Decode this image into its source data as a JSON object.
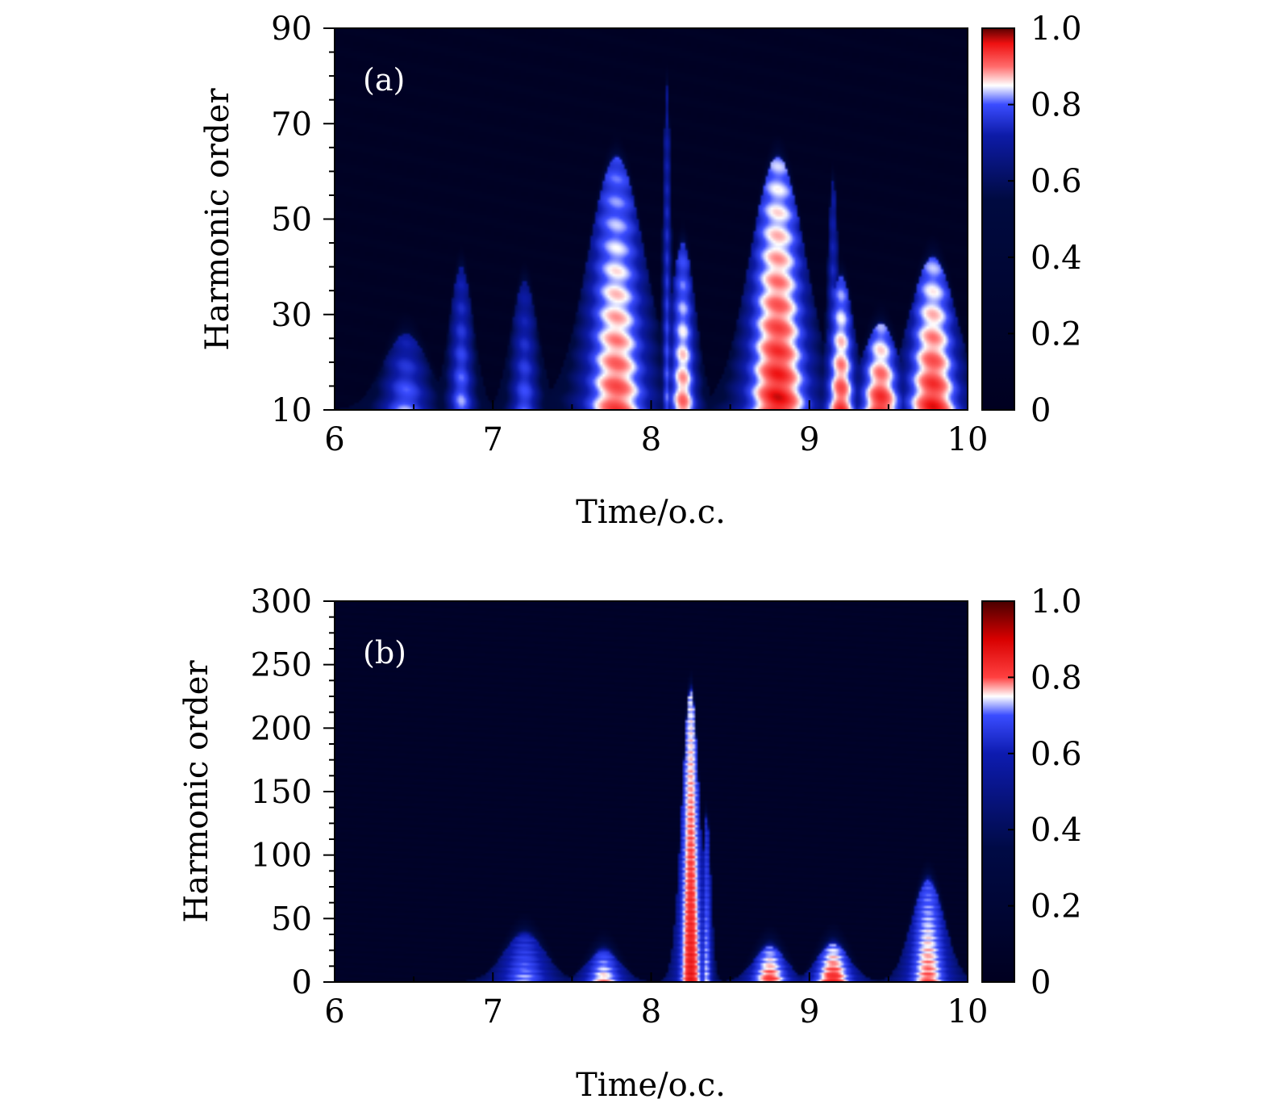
{
  "chart_data": [
    {
      "type": "heatmap",
      "panel_label": "(a)",
      "xlabel": "Time/o.c.",
      "ylabel": "Harmonic order",
      "xlim": [
        6,
        10
      ],
      "ylim": [
        10,
        90
      ],
      "x_ticks": [
        6,
        7,
        8,
        9,
        10
      ],
      "x_tick_labels": [
        "6",
        "7",
        "8",
        "9",
        "10"
      ],
      "y_ticks": [
        10,
        30,
        50,
        70,
        90
      ],
      "y_tick_labels": [
        "10",
        "30",
        "50",
        "70",
        "90"
      ],
      "colorbar": {
        "range": [
          0,
          1
        ],
        "ticks": [
          0,
          0.2,
          0.4,
          0.6,
          0.8,
          1.0
        ],
        "tick_labels": [
          "0",
          "0.2",
          "0.4",
          "0.6",
          "0.8",
          "1.0"
        ],
        "stops": [
          {
            "v": 0.0,
            "c": "#000020"
          },
          {
            "v": 0.55,
            "c": "#000a40"
          },
          {
            "v": 0.72,
            "c": "#0d1ba8"
          },
          {
            "v": 0.8,
            "c": "#3a4cff"
          },
          {
            "v": 0.85,
            "c": "#ffffff"
          },
          {
            "v": 0.9,
            "c": "#ff6b6b"
          },
          {
            "v": 0.96,
            "c": "#ef1010"
          },
          {
            "v": 1.0,
            "c": "#5a0000"
          }
        ]
      },
      "features": [
        {
          "t": 6.45,
          "peak": 26,
          "width": 0.3,
          "level": 0.82
        },
        {
          "t": 6.8,
          "peak": 40,
          "width": 0.16,
          "level": 0.82
        },
        {
          "t": 7.2,
          "peak": 37,
          "width": 0.18,
          "level": 0.8
        },
        {
          "t": 7.78,
          "peak": 63,
          "width": 0.38,
          "level": 0.92
        },
        {
          "t": 8.1,
          "peak": 78,
          "width": 0.06,
          "level": 0.8
        },
        {
          "t": 8.2,
          "peak": 45,
          "width": 0.17,
          "level": 0.9
        },
        {
          "t": 8.8,
          "peak": 63,
          "width": 0.37,
          "level": 0.96
        },
        {
          "t": 9.2,
          "peak": 38,
          "width": 0.18,
          "level": 0.93
        },
        {
          "t": 9.15,
          "peak": 58,
          "width": 0.08,
          "level": 0.8
        },
        {
          "t": 9.78,
          "peak": 42,
          "width": 0.32,
          "level": 0.95
        },
        {
          "t": 9.45,
          "peak": 28,
          "width": 0.25,
          "level": 0.95
        }
      ]
    },
    {
      "type": "heatmap",
      "panel_label": "(b)",
      "xlabel": "Time/o.c.",
      "ylabel": "Harmonic order",
      "xlim": [
        6,
        10
      ],
      "ylim": [
        0,
        300
      ],
      "x_ticks": [
        6,
        7,
        8,
        9,
        10
      ],
      "x_tick_labels": [
        "6",
        "7",
        "8",
        "9",
        "10"
      ],
      "y_ticks": [
        0,
        50,
        100,
        150,
        200,
        250,
        300
      ],
      "y_tick_labels": [
        "0",
        "50",
        "100",
        "150",
        "200",
        "250",
        "300"
      ],
      "colorbar": {
        "range": [
          0,
          1
        ],
        "ticks": [
          0,
          0.2,
          0.4,
          0.6,
          0.8,
          1.0
        ],
        "tick_labels": [
          "0",
          "0.2",
          "0.4",
          "0.6",
          "0.8",
          "1.0"
        ],
        "stops": [
          {
            "v": 0.0,
            "c": "#000020"
          },
          {
            "v": 0.35,
            "c": "#000a45"
          },
          {
            "v": 0.6,
            "c": "#0d1bb0"
          },
          {
            "v": 0.7,
            "c": "#3a4cff"
          },
          {
            "v": 0.75,
            "c": "#ffffff"
          },
          {
            "v": 0.8,
            "c": "#ff4040"
          },
          {
            "v": 0.9,
            "c": "#d80000"
          },
          {
            "v": 1.0,
            "c": "#4a0000"
          }
        ]
      },
      "features": [
        {
          "t": 7.2,
          "peak": 38,
          "width": 0.28,
          "level": 0.73
        },
        {
          "t": 7.7,
          "peak": 25,
          "width": 0.22,
          "level": 0.78
        },
        {
          "t": 8.25,
          "peak": 230,
          "width": 0.12,
          "level": 0.86
        },
        {
          "t": 8.35,
          "peak": 130,
          "width": 0.06,
          "level": 0.74
        },
        {
          "t": 8.75,
          "peak": 28,
          "width": 0.22,
          "level": 0.82
        },
        {
          "t": 9.15,
          "peak": 30,
          "width": 0.22,
          "level": 0.84
        },
        {
          "t": 9.75,
          "peak": 80,
          "width": 0.22,
          "level": 0.8
        }
      ]
    }
  ]
}
